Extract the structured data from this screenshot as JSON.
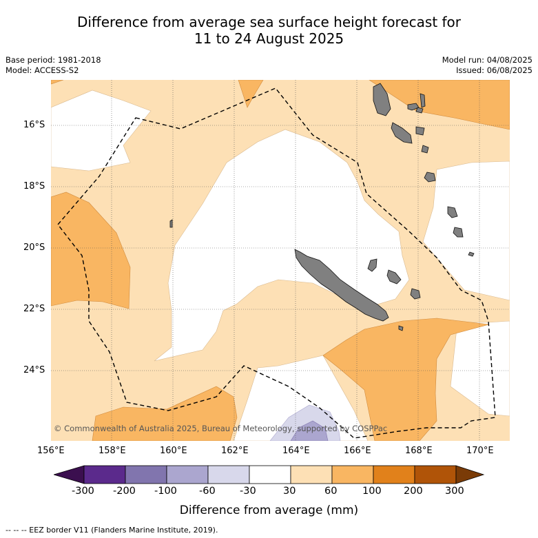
{
  "header": {
    "title_line1": "Difference from average sea surface height forecast for",
    "title_line2": "11 to 24 August 2025",
    "base_period": "Base period: 1981-2018",
    "model": "Model: ACCESS-S2",
    "model_run": "Model run: 04/08/2025",
    "issued": "Issued: 06/08/2025"
  },
  "map": {
    "lon_range": [
      156,
      171
    ],
    "lat_range": [
      -25.9,
      -14.2
    ],
    "lat_ticks": [
      "16°S",
      "18°S",
      "20°S",
      "22°S",
      "24°S"
    ],
    "lon_ticks": [
      "156°E",
      "158°E",
      "160°E",
      "162°E",
      "164°E",
      "166°E",
      "168°E",
      "170°E"
    ],
    "copyright": "© Commonwealth of Australia 2025, Bureau of Meteorology, supported by COSPPac",
    "colors": {
      "neutral": "#ffffff",
      "pos_30_60": "#fde0b5",
      "pos_60_100": "#f9b662",
      "neg_30_60": "#d8d8eb",
      "neg_60_100": "#aba6cf",
      "land": "#808080"
    }
  },
  "colorbar": {
    "title": "Difference from average (mm)",
    "tick_labels": [
      "-300",
      "-200",
      "-100",
      "-60",
      "-30",
      "30",
      "60",
      "100",
      "200",
      "300"
    ],
    "colors": [
      "#3b0f4f",
      "#5b2a8c",
      "#8175ae",
      "#aba6cf",
      "#d8d8eb",
      "#ffffff",
      "#fde0b5",
      "#f9b662",
      "#e1811b",
      "#b05408",
      "#7a3b07"
    ]
  },
  "footnote": "--  --  -- EEZ border V11 (Flanders Marine Institute, 2019)."
}
